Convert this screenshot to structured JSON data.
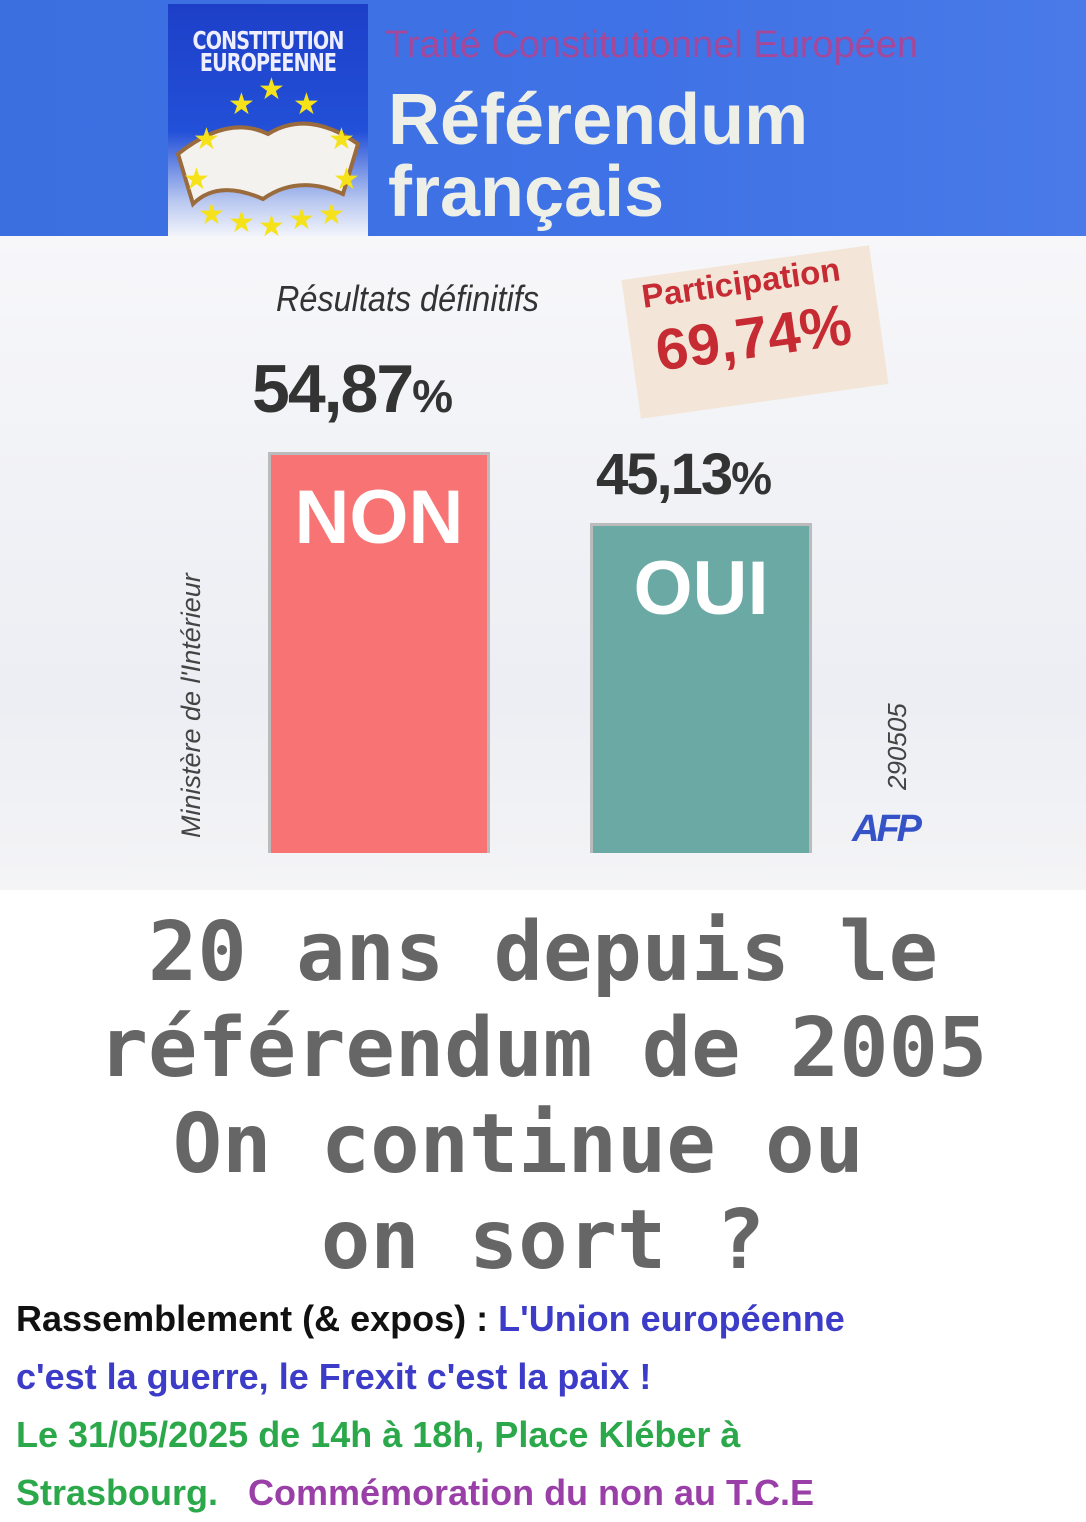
{
  "header": {
    "logo_text": "CONSTITUTION EUROPEENNE",
    "subtitle": "Traité Constitutionnel Européen",
    "title_line1": "Référendum",
    "title_line2": "français"
  },
  "chart_data": {
    "type": "bar",
    "title": "Résultats définitifs",
    "categories": [
      "NON",
      "OUI"
    ],
    "values": [
      54.87,
      45.13
    ],
    "value_labels": [
      "54,87",
      "45,13"
    ],
    "unit": "%",
    "ylim": [
      0,
      54.87
    ],
    "colors": [
      "#f87373",
      "#6aa9a4"
    ],
    "participation_label": "Participation",
    "participation_value": "69,74%",
    "source": "Ministère de l'Intérieur",
    "code": "290505",
    "credit": "AFP"
  },
  "headline": [
    "20 ans depuis le",
    "référendum de 2005",
    "On continue ou ",
    "on sort ?"
  ],
  "footer": {
    "line1_black": "Rassemblement (& expos) : ",
    "line1_blue": "L'Union européenne",
    "line2_blue": "c'est la guerre, le Frexit c'est la paix !",
    "line3_green": "Le 31/05/2025 de 14h à 18h, Place Kléber à",
    "line4_green": "Strasbourg.   ",
    "line4_purple": "Commémoration du non au T.C.E",
    "colors": {
      "blue": "#3c3cc8",
      "green": "#2aa84a",
      "purple": "#9a3fa8"
    }
  }
}
